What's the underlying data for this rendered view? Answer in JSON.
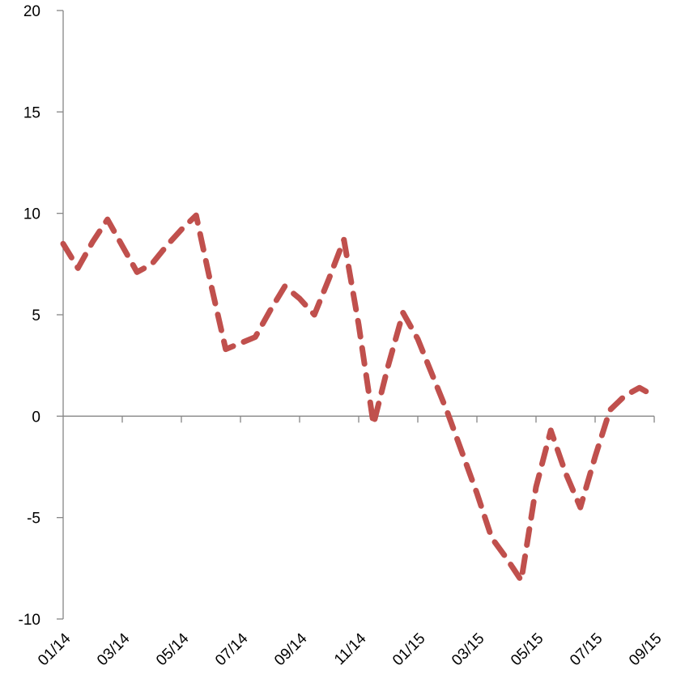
{
  "chart_data": {
    "type": "line",
    "categories": [
      "01/14",
      null,
      null,
      null,
      "03/14",
      null,
      null,
      null,
      "05/14",
      null,
      null,
      null,
      "07/14",
      null,
      null,
      null,
      "09/14",
      null,
      null,
      null,
      "11/14",
      null,
      null,
      null,
      "01/15",
      null,
      null,
      null,
      "03/15",
      null,
      null,
      null,
      "05/15",
      null,
      null,
      null,
      "07/15",
      null,
      null,
      null,
      "09/15"
    ],
    "values": [
      8.5,
      7.3,
      8.6,
      9.7,
      8.4,
      7.1,
      7.5,
      8.4,
      9.2,
      9.9,
      6.5,
      3.3,
      3.6,
      3.9,
      5.2,
      6.4,
      5.8,
      5.0,
      6.8,
      8.7,
      4.5,
      -0.4,
      2.5,
      5.1,
      3.8,
      2.0,
      0.2,
      -1.8,
      -3.8,
      -6.0,
      -7.0,
      -8.1,
      -3.5,
      -0.7,
      -2.8,
      -4.5,
      -2.0,
      0.3,
      1.0,
      1.4,
      1.0
    ],
    "color": "#c0504d",
    "dashed": true,
    "ylim": [
      -10,
      20
    ],
    "yticks": [
      -10,
      -5,
      0,
      5,
      10,
      15,
      20
    ]
  }
}
